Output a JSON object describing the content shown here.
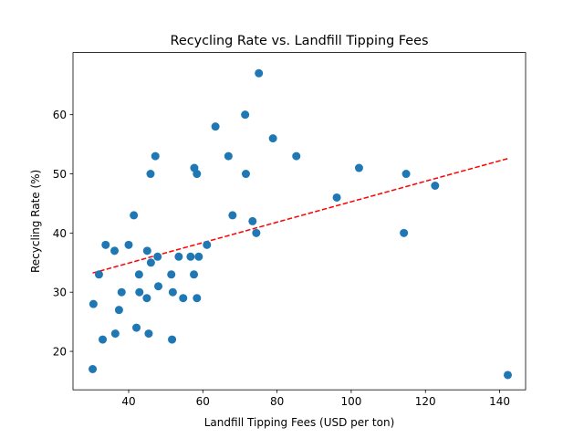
{
  "chart_data": {
    "type": "scatter",
    "title": "Recycling Rate vs. Landfill Tipping Fees",
    "xlabel": "Landfill Tipping Fees (USD per ton)",
    "ylabel": "Recycling Rate (%)",
    "xlim": [
      25,
      147
    ],
    "ylim": [
      13.5,
      70.5
    ],
    "xticks": [
      40,
      60,
      80,
      100,
      120,
      140
    ],
    "yticks": [
      20,
      30,
      40,
      50,
      60
    ],
    "grid": false,
    "point_color": "#1f77b4",
    "trendline": {
      "color": "#ff0000",
      "style": "dashed",
      "x_start": 30.3,
      "x_end": 142.2,
      "slope": 0.1729,
      "intercept": 28.0
    },
    "points": [
      {
        "x": 30.3,
        "y": 17
      },
      {
        "x": 30.5,
        "y": 28
      },
      {
        "x": 32.0,
        "y": 33
      },
      {
        "x": 33.0,
        "y": 22
      },
      {
        "x": 33.8,
        "y": 38
      },
      {
        "x": 36.2,
        "y": 37
      },
      {
        "x": 36.4,
        "y": 23
      },
      {
        "x": 37.4,
        "y": 27
      },
      {
        "x": 38.1,
        "y": 30
      },
      {
        "x": 40.0,
        "y": 38
      },
      {
        "x": 41.4,
        "y": 43
      },
      {
        "x": 42.1,
        "y": 24
      },
      {
        "x": 42.8,
        "y": 33
      },
      {
        "x": 42.9,
        "y": 30
      },
      {
        "x": 44.9,
        "y": 29
      },
      {
        "x": 45.0,
        "y": 37
      },
      {
        "x": 45.4,
        "y": 23
      },
      {
        "x": 45.9,
        "y": 50
      },
      {
        "x": 46.0,
        "y": 35
      },
      {
        "x": 47.2,
        "y": 53
      },
      {
        "x": 47.8,
        "y": 36
      },
      {
        "x": 48.0,
        "y": 31
      },
      {
        "x": 51.5,
        "y": 33
      },
      {
        "x": 51.7,
        "y": 22
      },
      {
        "x": 51.9,
        "y": 30
      },
      {
        "x": 53.5,
        "y": 36
      },
      {
        "x": 54.7,
        "y": 29
      },
      {
        "x": 56.7,
        "y": 36
      },
      {
        "x": 57.6,
        "y": 33
      },
      {
        "x": 57.7,
        "y": 51
      },
      {
        "x": 58.4,
        "y": 50
      },
      {
        "x": 58.4,
        "y": 29
      },
      {
        "x": 58.9,
        "y": 36
      },
      {
        "x": 61.1,
        "y": 38
      },
      {
        "x": 63.4,
        "y": 58
      },
      {
        "x": 66.9,
        "y": 53
      },
      {
        "x": 68.0,
        "y": 43
      },
      {
        "x": 71.4,
        "y": 60
      },
      {
        "x": 71.6,
        "y": 50
      },
      {
        "x": 73.4,
        "y": 42
      },
      {
        "x": 74.4,
        "y": 40
      },
      {
        "x": 75.1,
        "y": 67
      },
      {
        "x": 78.9,
        "y": 56
      },
      {
        "x": 85.2,
        "y": 53
      },
      {
        "x": 96.1,
        "y": 46
      },
      {
        "x": 102.1,
        "y": 51
      },
      {
        "x": 114.2,
        "y": 40
      },
      {
        "x": 114.8,
        "y": 50
      },
      {
        "x": 122.6,
        "y": 48
      },
      {
        "x": 142.2,
        "y": 16
      }
    ]
  }
}
